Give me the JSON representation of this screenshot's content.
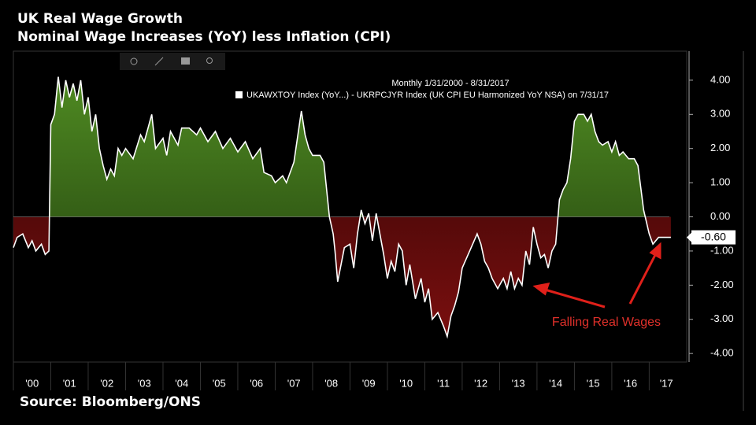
{
  "chart_data": {
    "type": "area",
    "title": "UK Real Wage Growth",
    "subtitle": "Nominal Wage Increases (YoY) less Inflation (CPI)",
    "source": "Source: Bloomberg/ONS",
    "legend_period": "Monthly 1/31/2000 - 8/31/2017",
    "annotation": "Falling Real Wages",
    "x": [
      2000.0,
      2000.1,
      2000.25,
      2000.4,
      2000.5,
      2000.6,
      2000.75,
      2000.85,
      2000.95,
      2001.0,
      2001.1,
      2001.2,
      2001.3,
      2001.4,
      2001.5,
      2001.6,
      2001.7,
      2001.8,
      2001.9,
      2002.0,
      2002.1,
      2002.2,
      2002.3,
      2002.4,
      2002.5,
      2002.6,
      2002.7,
      2002.8,
      2002.9,
      2003.0,
      2003.2,
      2003.4,
      2003.5,
      2003.6,
      2003.7,
      2003.8,
      2004.0,
      2004.1,
      2004.2,
      2004.4,
      2004.5,
      2004.7,
      2004.9,
      2005.0,
      2005.2,
      2005.4,
      2005.6,
      2005.8,
      2006.0,
      2006.2,
      2006.4,
      2006.6,
      2006.7,
      2006.9,
      2007.0,
      2007.2,
      2007.3,
      2007.5,
      2007.7,
      2007.8,
      2007.9,
      2008.0,
      2008.2,
      2008.3,
      2008.45,
      2008.55,
      2008.6,
      2008.67,
      2008.85,
      2009.0,
      2009.1,
      2009.2,
      2009.3,
      2009.4,
      2009.5,
      2009.6,
      2009.7,
      2009.8,
      2009.9,
      2010.0,
      2010.1,
      2010.2,
      2010.3,
      2010.4,
      2010.5,
      2010.6,
      2010.75,
      2010.9,
      2011.0,
      2011.1,
      2011.2,
      2011.35,
      2011.5,
      2011.6,
      2011.7,
      2011.8,
      2011.9,
      2012.0,
      2012.2,
      2012.4,
      2012.5,
      2012.6,
      2012.7,
      2012.8,
      2012.95,
      2013.1,
      2013.2,
      2013.3,
      2013.4,
      2013.5,
      2013.6,
      2013.7,
      2013.8,
      2013.9,
      2014.0,
      2014.1,
      2014.2,
      2014.3,
      2014.4,
      2014.5,
      2014.6,
      2014.7,
      2014.8,
      2014.9,
      2015.0,
      2015.1,
      2015.25,
      2015.35,
      2015.45,
      2015.55,
      2015.65,
      2015.75,
      2015.9,
      2016.0,
      2016.1,
      2016.2,
      2016.3,
      2016.45,
      2016.6,
      2016.7,
      2016.85,
      2017.0,
      2017.1,
      2017.25,
      2017.4,
      2017.58
    ],
    "series": [
      {
        "name": "UKAWXTOY Index (YoY...) - UKRPCJYR Index (UK CPI EU Harmonized YoY NSA) on 7/31/17",
        "color": "#ffffff",
        "values": [
          -0.9,
          -0.6,
          -0.5,
          -0.9,
          -0.7,
          -1.0,
          -0.8,
          -1.1,
          -1.0,
          2.7,
          3.0,
          4.1,
          3.2,
          4.0,
          3.5,
          3.9,
          3.4,
          4.0,
          3.0,
          3.5,
          2.5,
          3.0,
          2.0,
          1.5,
          1.1,
          1.4,
          1.2,
          2.0,
          1.8,
          2.0,
          1.7,
          2.4,
          2.2,
          2.6,
          3.0,
          2.0,
          2.3,
          1.8,
          2.5,
          2.1,
          2.6,
          2.6,
          2.4,
          2.6,
          2.2,
          2.5,
          2.0,
          2.3,
          1.9,
          2.2,
          1.7,
          2.0,
          1.3,
          1.2,
          1.0,
          1.2,
          1.0,
          1.6,
          3.1,
          2.4,
          2.0,
          1.8,
          1.8,
          1.6,
          0.0,
          -0.5,
          -1.0,
          -1.9,
          -0.9,
          -0.8,
          -1.5,
          -0.5,
          0.2,
          -0.2,
          0.1,
          -0.7,
          0.1,
          -0.5,
          -1.1,
          -1.8,
          -1.3,
          -1.6,
          -0.8,
          -1.0,
          -2.0,
          -1.4,
          -2.4,
          -1.8,
          -2.5,
          -2.1,
          -3.0,
          -2.8,
          -3.2,
          -3.5,
          -2.9,
          -2.6,
          -2.2,
          -1.5,
          -1.0,
          -0.5,
          -0.8,
          -1.3,
          -1.5,
          -1.8,
          -2.1,
          -1.8,
          -2.1,
          -1.6,
          -2.1,
          -1.8,
          -2.0,
          -1.0,
          -1.4,
          -0.3,
          -0.8,
          -1.2,
          -1.1,
          -1.5,
          -1.0,
          -0.8,
          0.5,
          0.8,
          1.0,
          1.7,
          2.8,
          3.0,
          3.0,
          2.8,
          3.0,
          2.5,
          2.2,
          2.1,
          2.2,
          1.9,
          2.2,
          1.8,
          1.9,
          1.7,
          1.7,
          1.5,
          0.2,
          -0.5,
          -0.8,
          -0.6,
          -0.6,
          -0.6
        ]
      }
    ],
    "current_value": {
      "value": -0.6,
      "label": "-0.60"
    },
    "positive_color": "#4f8a22",
    "negative_color": "#7a0f0f",
    "xlim": [
      2000,
      2017.75
    ],
    "xticks": [
      {
        "value": 2000,
        "label": "'00"
      },
      {
        "value": 2001,
        "label": "'01"
      },
      {
        "value": 2002,
        "label": "'02"
      },
      {
        "value": 2003,
        "label": "'03"
      },
      {
        "value": 2004,
        "label": "'04"
      },
      {
        "value": 2005,
        "label": "'05"
      },
      {
        "value": 2006,
        "label": "'06"
      },
      {
        "value": 2007,
        "label": "'07"
      },
      {
        "value": 2008,
        "label": "'08"
      },
      {
        "value": 2009,
        "label": "'09"
      },
      {
        "value": 2010,
        "label": "'10"
      },
      {
        "value": 2011,
        "label": "'11"
      },
      {
        "value": 2012,
        "label": "'12"
      },
      {
        "value": 2013,
        "label": "'13"
      },
      {
        "value": 2014,
        "label": "'14"
      },
      {
        "value": 2015,
        "label": "'15"
      },
      {
        "value": 2016,
        "label": "'16"
      },
      {
        "value": 2017,
        "label": "'17"
      }
    ],
    "ylim": [
      -4.25,
      4.85
    ],
    "yticks": [
      {
        "value": 4,
        "label": "4.00"
      },
      {
        "value": 3,
        "label": "3.00"
      },
      {
        "value": 2,
        "label": "2.00"
      },
      {
        "value": 1,
        "label": "1.00"
      },
      {
        "value": 0,
        "label": "0.00"
      },
      {
        "value": -1,
        "label": "-1.00"
      },
      {
        "value": -2,
        "label": "-2.00"
      },
      {
        "value": -3,
        "label": "-3.00"
      },
      {
        "value": -4,
        "label": "-4.00"
      }
    ]
  }
}
